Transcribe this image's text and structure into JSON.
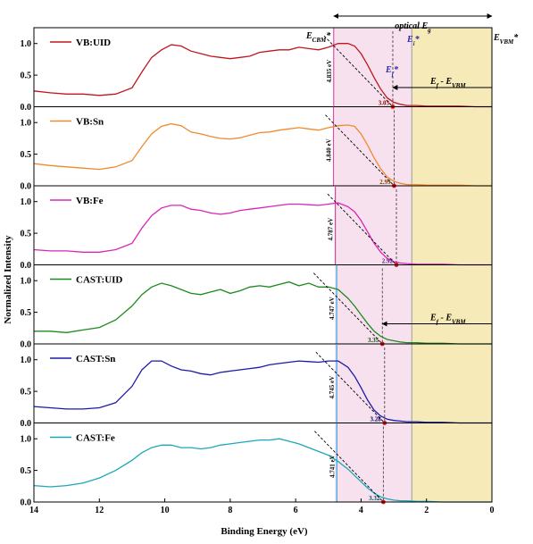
{
  "chart_data": {
    "type": "line",
    "xlabel": "Binding Energy (eV)",
    "ylabel": "Normalized Intensity",
    "xlim": [
      14,
      0
    ],
    "x_reversed": true,
    "ylim": [
      0,
      1.25
    ],
    "x_ticks": [
      "14",
      "12",
      "10",
      "8",
      "6",
      "4",
      "2",
      "0"
    ],
    "y_ticks": [
      "0.0",
      "0.5",
      "1.0"
    ],
    "grid": false,
    "legend_placement": "top-left of each panel",
    "regions": {
      "pink_band_from_ev": 4.8,
      "yellow_band_from_ev": 2.45,
      "pink_color": "#f7e1ef",
      "yellow_color": "#f6eab8"
    },
    "annotations": {
      "optical_eg_label": "optical E",
      "optical_eg_sub": "g",
      "e_cbm_label": "E",
      "e_cbm_sub": "CBM",
      "e_cbm_star": "*",
      "e_vbm_label": "E",
      "e_vbm_sub": "VBM",
      "e_vbm_star": "*",
      "e_i_label": "E",
      "e_i_sub": "i",
      "e_i_star": "*",
      "e_f_label": "E",
      "e_f_sub": "f",
      "e_f_star": "*",
      "ef_minus_evbm_main": "E",
      "ef_minus_evbm_sub1": "f",
      "ef_minus_evbm_mid": " - E",
      "ef_minus_evbm_sub2": "VBM"
    },
    "series": [
      {
        "name": "VB:UID",
        "color": "#c0161c",
        "cbm_ev": 4.835,
        "gap_label": "4.835 eV",
        "onset_ev": 3.03,
        "onset_label": "3.03",
        "onset_color": "#8b0000",
        "line_color": "#e040a0",
        "x": [
          14,
          13.5,
          13,
          12.5,
          12,
          11.5,
          11,
          10.7,
          10.4,
          10.1,
          9.8,
          9.5,
          9.2,
          8.9,
          8.6,
          8.3,
          8.0,
          7.7,
          7.4,
          7.1,
          6.8,
          6.5,
          6.2,
          5.9,
          5.6,
          5.3,
          5.0,
          4.7,
          4.4,
          4.2,
          4.0,
          3.8,
          3.6,
          3.4,
          3.2,
          3.0,
          2.8,
          2.6,
          2.3,
          2.0,
          1.5,
          1.0,
          0.5,
          0
        ],
        "y": [
          0.25,
          0.22,
          0.2,
          0.2,
          0.18,
          0.2,
          0.3,
          0.55,
          0.78,
          0.9,
          0.98,
          0.96,
          0.88,
          0.84,
          0.8,
          0.78,
          0.76,
          0.78,
          0.8,
          0.86,
          0.88,
          0.9,
          0.9,
          0.94,
          0.92,
          0.9,
          0.94,
          1.0,
          1.0,
          0.96,
          0.84,
          0.66,
          0.46,
          0.28,
          0.14,
          0.07,
          0.04,
          0.02,
          0.02,
          0.01,
          0.01,
          0.01,
          0.0,
          0.0
        ]
      },
      {
        "name": "VB:Sn",
        "color": "#f08a2c",
        "cbm_ev": 4.84,
        "gap_label": "4.840 eV",
        "onset_ev": 2.99,
        "onset_label": "2.99",
        "onset_color": "#7a4a00",
        "line_color": "#e040a0",
        "x": [
          14,
          13.5,
          13,
          12.5,
          12,
          11.5,
          11,
          10.7,
          10.4,
          10.1,
          9.8,
          9.5,
          9.2,
          8.9,
          8.6,
          8.3,
          8.0,
          7.7,
          7.4,
          7.1,
          6.8,
          6.5,
          6.2,
          5.9,
          5.6,
          5.3,
          5.0,
          4.7,
          4.4,
          4.2,
          4.0,
          3.8,
          3.6,
          3.4,
          3.2,
          3.0,
          2.8,
          2.6,
          2.3,
          2.0,
          1.5,
          1.0,
          0.5,
          0
        ],
        "y": [
          0.35,
          0.32,
          0.3,
          0.28,
          0.26,
          0.3,
          0.4,
          0.62,
          0.82,
          0.94,
          0.98,
          0.95,
          0.85,
          0.82,
          0.78,
          0.75,
          0.74,
          0.76,
          0.8,
          0.84,
          0.85,
          0.88,
          0.9,
          0.92,
          0.9,
          0.88,
          0.92,
          0.95,
          0.96,
          0.94,
          0.82,
          0.64,
          0.44,
          0.27,
          0.14,
          0.07,
          0.04,
          0.02,
          0.02,
          0.01,
          0.01,
          0.01,
          0.0,
          0.0
        ]
      },
      {
        "name": "VB:Fe",
        "color": "#d826b8",
        "cbm_ev": 4.787,
        "gap_label": "4.787 eV",
        "onset_ev": 2.92,
        "onset_label": "2.92",
        "onset_color": "#5a1a7a",
        "line_color": "#e040a0",
        "x": [
          14,
          13.5,
          13,
          12.5,
          12,
          11.5,
          11,
          10.7,
          10.4,
          10.1,
          9.8,
          9.5,
          9.2,
          8.9,
          8.6,
          8.3,
          8.0,
          7.7,
          7.4,
          7.1,
          6.8,
          6.5,
          6.2,
          5.9,
          5.6,
          5.3,
          5.0,
          4.7,
          4.4,
          4.2,
          4.0,
          3.8,
          3.6,
          3.4,
          3.2,
          3.0,
          2.8,
          2.6,
          2.3,
          2.0,
          1.5,
          1.0,
          0.5,
          0
        ],
        "y": [
          0.24,
          0.22,
          0.22,
          0.2,
          0.2,
          0.24,
          0.34,
          0.58,
          0.78,
          0.9,
          0.94,
          0.94,
          0.88,
          0.86,
          0.82,
          0.8,
          0.82,
          0.86,
          0.88,
          0.9,
          0.92,
          0.94,
          0.96,
          0.96,
          0.95,
          0.94,
          0.96,
          0.98,
          0.92,
          0.84,
          0.7,
          0.52,
          0.34,
          0.2,
          0.1,
          0.05,
          0.03,
          0.02,
          0.01,
          0.01,
          0.01,
          0.0,
          0.0,
          0.0
        ]
      },
      {
        "name": "CAST:UID",
        "color": "#1d8a1d",
        "cbm_ev": 4.747,
        "gap_label": "4.747 eV",
        "onset_ev": 3.35,
        "onset_label": "3.35",
        "onset_color": "#0a4a0a",
        "line_color": "#2aa8e0",
        "x": [
          14,
          13.5,
          13,
          12.5,
          12,
          11.5,
          11,
          10.7,
          10.4,
          10.1,
          9.8,
          9.5,
          9.2,
          8.9,
          8.6,
          8.3,
          8.0,
          7.7,
          7.4,
          7.1,
          6.8,
          6.5,
          6.2,
          5.9,
          5.6,
          5.3,
          5.0,
          4.7,
          4.4,
          4.2,
          4.0,
          3.8,
          3.6,
          3.4,
          3.2,
          3.0,
          2.8,
          2.6,
          2.3,
          2.0,
          1.5,
          1.0,
          0.5,
          0
        ],
        "y": [
          0.2,
          0.2,
          0.18,
          0.22,
          0.26,
          0.38,
          0.6,
          0.78,
          0.9,
          0.96,
          0.92,
          0.86,
          0.8,
          0.78,
          0.82,
          0.86,
          0.8,
          0.84,
          0.9,
          0.92,
          0.9,
          0.94,
          0.98,
          0.92,
          0.96,
          0.9,
          0.9,
          0.86,
          0.72,
          0.6,
          0.46,
          0.32,
          0.2,
          0.12,
          0.07,
          0.05,
          0.03,
          0.02,
          0.02,
          0.01,
          0.01,
          0.0,
          0.0,
          0.0
        ]
      },
      {
        "name": "CAST:Sn",
        "color": "#1a1aa8",
        "cbm_ev": 4.745,
        "gap_label": "4.745 eV",
        "onset_ev": 3.28,
        "onset_label": "3.28",
        "onset_color": "#00005a",
        "line_color": "#2aa8e0",
        "x": [
          14,
          13.5,
          13,
          12.5,
          12,
          11.5,
          11,
          10.7,
          10.4,
          10.1,
          9.8,
          9.5,
          9.2,
          8.9,
          8.6,
          8.3,
          8.0,
          7.7,
          7.4,
          7.1,
          6.8,
          6.5,
          6.2,
          5.9,
          5.6,
          5.3,
          5.0,
          4.7,
          4.4,
          4.2,
          4.0,
          3.8,
          3.6,
          3.4,
          3.2,
          3.0,
          2.8,
          2.6,
          2.3,
          2.0,
          1.5,
          1.0,
          0.5,
          0
        ],
        "y": [
          0.26,
          0.24,
          0.22,
          0.22,
          0.24,
          0.32,
          0.58,
          0.84,
          0.98,
          0.98,
          0.9,
          0.84,
          0.82,
          0.78,
          0.76,
          0.8,
          0.82,
          0.84,
          0.86,
          0.88,
          0.92,
          0.94,
          0.96,
          0.98,
          0.97,
          0.96,
          0.98,
          0.98,
          0.88,
          0.74,
          0.56,
          0.36,
          0.2,
          0.11,
          0.06,
          0.04,
          0.03,
          0.02,
          0.02,
          0.01,
          0.01,
          0.0,
          0.0,
          0.0
        ]
      },
      {
        "name": "CAST:Fe",
        "color": "#1aa8b8",
        "cbm_ev": 4.741,
        "gap_label": "4.741 eV",
        "onset_ev": 3.32,
        "onset_label": "3.32",
        "onset_color": "#004a5a",
        "line_color": "#2aa8e0",
        "x": [
          14,
          13.5,
          13,
          12.5,
          12,
          11.5,
          11,
          10.7,
          10.4,
          10.1,
          9.8,
          9.5,
          9.2,
          8.9,
          8.6,
          8.3,
          8.0,
          7.7,
          7.4,
          7.1,
          6.8,
          6.5,
          6.2,
          5.9,
          5.6,
          5.3,
          5.0,
          4.7,
          4.4,
          4.2,
          4.0,
          3.8,
          3.6,
          3.4,
          3.2,
          3.0,
          2.8,
          2.6,
          2.3,
          2.0,
          1.5,
          1.0,
          0.5,
          0
        ],
        "y": [
          0.26,
          0.24,
          0.26,
          0.3,
          0.38,
          0.5,
          0.66,
          0.78,
          0.86,
          0.9,
          0.9,
          0.86,
          0.86,
          0.84,
          0.86,
          0.9,
          0.92,
          0.94,
          0.96,
          0.98,
          0.98,
          1.0,
          0.96,
          0.92,
          0.86,
          0.8,
          0.74,
          0.64,
          0.52,
          0.42,
          0.32,
          0.22,
          0.14,
          0.08,
          0.05,
          0.03,
          0.02,
          0.02,
          0.01,
          0.01,
          0.0,
          0.0,
          0.0,
          0.0
        ]
      }
    ]
  }
}
